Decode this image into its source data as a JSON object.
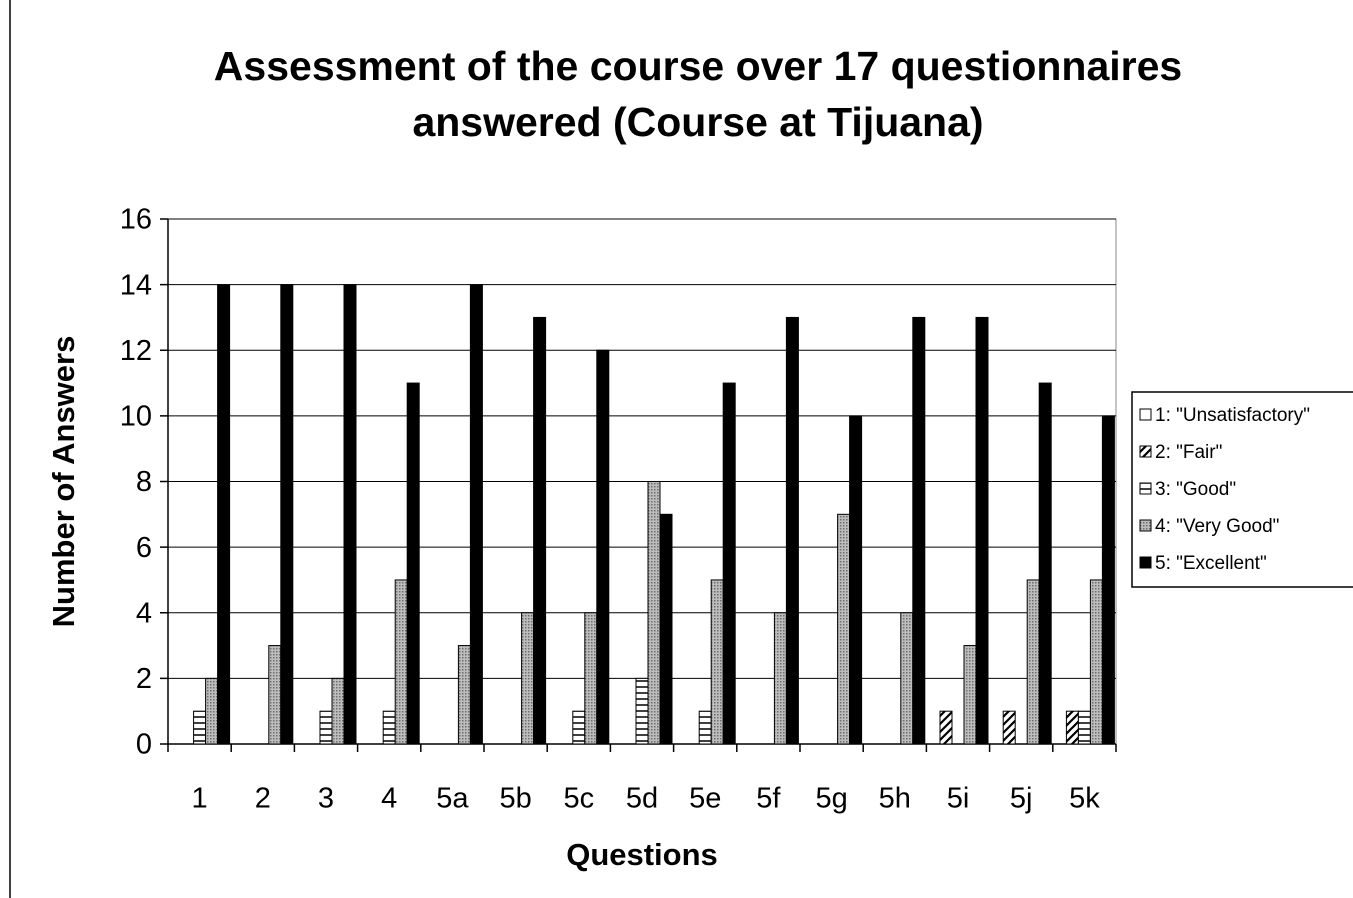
{
  "chart_data": {
    "type": "bar",
    "title": "Assessment of the course over 17 questionnaires answered (Course at Tijuana)",
    "xlabel": "Questions",
    "ylabel": "Number of Answers",
    "categories": [
      "1",
      "2",
      "3",
      "4",
      "5a",
      "5b",
      "5c",
      "5d",
      "5e",
      "5f",
      "5g",
      "5h",
      "5i",
      "5j",
      "5k"
    ],
    "series": [
      {
        "name": "1: \"Unsatisfactory\"",
        "color": "#ffffff",
        "pattern": "none",
        "values": [
          0,
          0,
          0,
          0,
          0,
          0,
          0,
          0,
          0,
          0,
          0,
          0,
          0,
          0,
          0
        ]
      },
      {
        "name": "2: \"Fair\"",
        "color": "#ffffff",
        "pattern": "diagonal",
        "values": [
          0,
          0,
          0,
          0,
          0,
          0,
          0,
          0,
          0,
          0,
          0,
          0,
          1,
          1,
          1
        ]
      },
      {
        "name": "3: \"Good\"",
        "color": "#ffffff",
        "pattern": "horizontal",
        "values": [
          1,
          0,
          1,
          1,
          0,
          0,
          1,
          2,
          1,
          0,
          0,
          0,
          0,
          0,
          1
        ]
      },
      {
        "name": "4: \"Very Good\"",
        "color": "#a8a8a8",
        "pattern": "dots",
        "values": [
          2,
          3,
          2,
          5,
          3,
          4,
          4,
          8,
          5,
          4,
          7,
          4,
          3,
          5,
          5
        ]
      },
      {
        "name": "5: \"Excellent\"",
        "color": "#000000",
        "pattern": "solid",
        "values": [
          14,
          14,
          14,
          11,
          14,
          13,
          12,
          7,
          11,
          13,
          10,
          13,
          13,
          11,
          10
        ]
      }
    ],
    "ylim": [
      0,
      16
    ],
    "yticks": [
      0,
      2,
      4,
      6,
      8,
      10,
      12,
      14,
      16
    ],
    "grid": true,
    "legend": "right"
  }
}
